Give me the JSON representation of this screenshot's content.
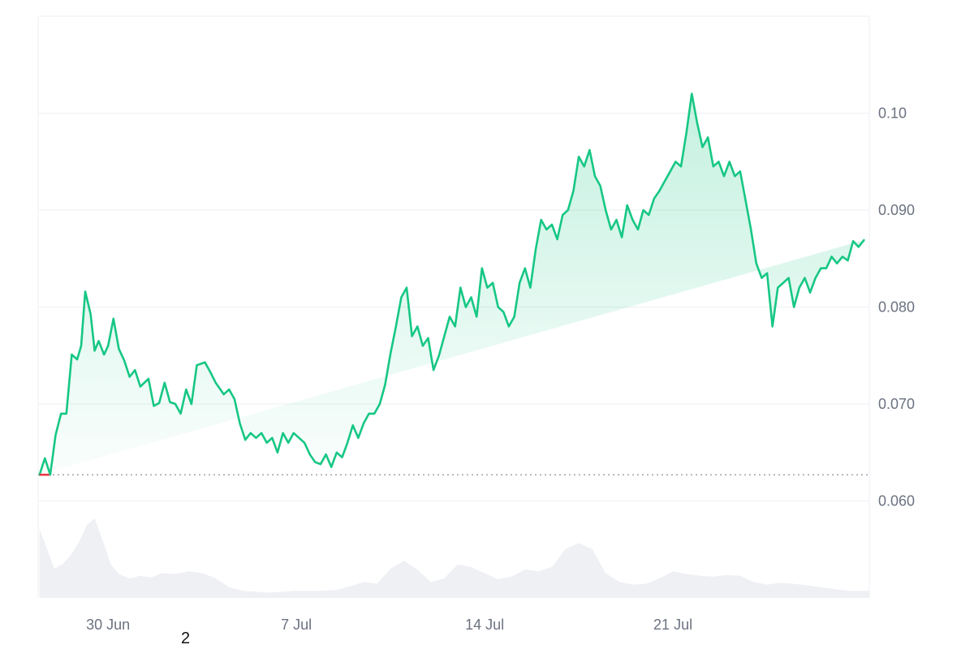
{
  "stray_label": "2",
  "colors": {
    "line": "#16c784",
    "start_marker": "#ea3943",
    "volume": "#eef0f4",
    "grid": "#eceff3",
    "text": "#6b7280"
  },
  "chart_data": {
    "type": "area",
    "title": "",
    "xlabel": "",
    "ylabel": "",
    "y_axis_position": "right",
    "x_ticks": [
      {
        "label": "30 Jun",
        "day": 4
      },
      {
        "label": "7 Jul",
        "day": 11
      },
      {
        "label": "14 Jul",
        "day": 18
      },
      {
        "label": "21 Jul",
        "day": 25
      }
    ],
    "y_ticks": [
      {
        "label": "0.060",
        "value": 0.06
      },
      {
        "label": "0.070",
        "value": 0.07
      },
      {
        "label": "0.080",
        "value": 0.08
      },
      {
        "label": "0.090",
        "value": 0.09
      },
      {
        "label": "0.10",
        "value": 0.1
      }
    ],
    "xlim": [
      1.4,
      32.3
    ],
    "ylim": [
      0.05,
      0.11
    ],
    "baseline": 0.0627,
    "price": {
      "day": [
        1.45,
        1.65,
        1.85,
        2.05,
        2.25,
        2.45,
        2.65,
        2.85,
        3.0,
        3.15,
        3.35,
        3.5,
        3.65,
        3.85,
        4.0,
        4.2,
        4.4,
        4.6,
        4.8,
        5.0,
        5.2,
        5.5,
        5.7,
        5.9,
        6.1,
        6.3,
        6.5,
        6.7,
        6.9,
        7.1,
        7.3,
        7.6,
        7.8,
        8.0,
        8.3,
        8.5,
        8.7,
        8.9,
        9.1,
        9.3,
        9.5,
        9.7,
        9.9,
        10.1,
        10.3,
        10.5,
        10.7,
        10.9,
        11.1,
        11.3,
        11.5,
        11.7,
        11.9,
        12.1,
        12.3,
        12.5,
        12.7,
        12.9,
        13.1,
        13.3,
        13.5,
        13.7,
        13.9,
        14.1,
        14.3,
        14.5,
        14.7,
        14.9,
        15.1,
        15.3,
        15.5,
        15.7,
        15.9,
        16.1,
        16.3,
        16.5,
        16.7,
        16.9,
        17.1,
        17.3,
        17.5,
        17.7,
        17.9,
        18.1,
        18.3,
        18.5,
        18.7,
        18.9,
        19.1,
        19.3,
        19.5,
        19.7,
        19.9,
        20.1,
        20.3,
        20.5,
        20.7,
        20.9,
        21.1,
        21.3,
        21.5,
        21.7,
        21.9,
        22.1,
        22.3,
        22.5,
        22.7,
        22.9,
        23.1,
        23.3,
        23.5,
        23.7,
        23.9,
        24.1,
        24.3,
        24.5,
        24.7,
        24.9,
        25.1,
        25.3,
        25.5,
        25.7,
        25.9,
        26.1,
        26.3,
        26.5,
        26.7,
        26.9,
        27.1,
        27.3,
        27.5,
        27.7,
        27.9,
        28.1,
        28.3,
        28.5,
        28.7,
        28.9,
        29.1,
        29.3,
        29.5,
        29.7,
        29.9,
        30.1,
        30.3,
        30.5,
        30.7,
        30.9,
        31.1,
        31.3,
        31.5,
        31.7,
        31.9,
        32.1,
        32.3
      ],
      "value": [
        0.0627,
        0.0644,
        0.0627,
        0.0668,
        0.069,
        0.069,
        0.0751,
        0.0746,
        0.076,
        0.0816,
        0.0793,
        0.0755,
        0.0765,
        0.0751,
        0.076,
        0.0788,
        0.0757,
        0.0745,
        0.0728,
        0.0735,
        0.0718,
        0.0726,
        0.0698,
        0.0701,
        0.0722,
        0.0702,
        0.07,
        0.069,
        0.0715,
        0.07,
        0.074,
        0.0743,
        0.0733,
        0.0722,
        0.071,
        0.0715,
        0.0705,
        0.068,
        0.0663,
        0.067,
        0.0665,
        0.067,
        0.066,
        0.0665,
        0.065,
        0.067,
        0.066,
        0.067,
        0.0665,
        0.066,
        0.0648,
        0.064,
        0.0638,
        0.0648,
        0.0635,
        0.065,
        0.0645,
        0.066,
        0.0678,
        0.0665,
        0.068,
        0.069,
        0.069,
        0.07,
        0.072,
        0.0752,
        0.078,
        0.081,
        0.082,
        0.077,
        0.078,
        0.076,
        0.0768,
        0.0735,
        0.075,
        0.077,
        0.079,
        0.078,
        0.082,
        0.08,
        0.081,
        0.079,
        0.084,
        0.082,
        0.0825,
        0.08,
        0.0795,
        0.078,
        0.079,
        0.0825,
        0.084,
        0.082,
        0.086,
        0.089,
        0.088,
        0.0885,
        0.087,
        0.0895,
        0.09,
        0.092,
        0.0955,
        0.0945,
        0.0962,
        0.0935,
        0.0925,
        0.09,
        0.088,
        0.089,
        0.0872,
        0.0905,
        0.089,
        0.088,
        0.09,
        0.0895,
        0.0912,
        0.092,
        0.093,
        0.094,
        0.095,
        0.0945,
        0.098,
        0.102,
        0.099,
        0.0965,
        0.0975,
        0.0945,
        0.095,
        0.0935,
        0.095,
        0.0935,
        0.094,
        0.091,
        0.088,
        0.0845,
        0.083,
        0.0835,
        0.078,
        0.082,
        0.0825,
        0.083,
        0.08,
        0.082,
        0.083,
        0.0815,
        0.083,
        0.084,
        0.084,
        0.0852,
        0.0845,
        0.0852,
        0.0848,
        0.0868,
        0.0862,
        0.0869
      ]
    },
    "volume": {
      "day": [
        1.45,
        1.7,
        2.0,
        2.3,
        2.6,
        2.9,
        3.2,
        3.5,
        3.8,
        4.1,
        4.4,
        4.8,
        5.2,
        5.6,
        6.0,
        6.5,
        7.0,
        7.5,
        8.0,
        8.5,
        9.0,
        9.5,
        10.0,
        10.5,
        11.0,
        11.5,
        12.0,
        12.5,
        13.0,
        13.5,
        14.0,
        14.5,
        15.0,
        15.5,
        16.0,
        16.5,
        17.0,
        17.5,
        18.0,
        18.5,
        19.0,
        19.5,
        20.0,
        20.5,
        21.0,
        21.5,
        22.0,
        22.5,
        23.0,
        23.5,
        24.0,
        24.5,
        25.0,
        25.5,
        26.0,
        26.5,
        27.0,
        27.5,
        28.0,
        28.5,
        29.0,
        29.5,
        30.0,
        30.5,
        31.0,
        31.5,
        32.3
      ],
      "level": [
        0.78,
        0.58,
        0.33,
        0.38,
        0.48,
        0.62,
        0.82,
        0.9,
        0.65,
        0.38,
        0.27,
        0.22,
        0.25,
        0.23,
        0.28,
        0.27,
        0.3,
        0.28,
        0.22,
        0.12,
        0.08,
        0.07,
        0.06,
        0.07,
        0.08,
        0.08,
        0.08,
        0.09,
        0.13,
        0.18,
        0.16,
        0.33,
        0.42,
        0.32,
        0.18,
        0.22,
        0.38,
        0.35,
        0.28,
        0.21,
        0.24,
        0.32,
        0.3,
        0.35,
        0.55,
        0.62,
        0.55,
        0.28,
        0.18,
        0.15,
        0.16,
        0.22,
        0.3,
        0.27,
        0.25,
        0.24,
        0.26,
        0.25,
        0.18,
        0.15,
        0.17,
        0.16,
        0.14,
        0.12,
        0.1,
        0.08,
        0.08
      ]
    }
  }
}
